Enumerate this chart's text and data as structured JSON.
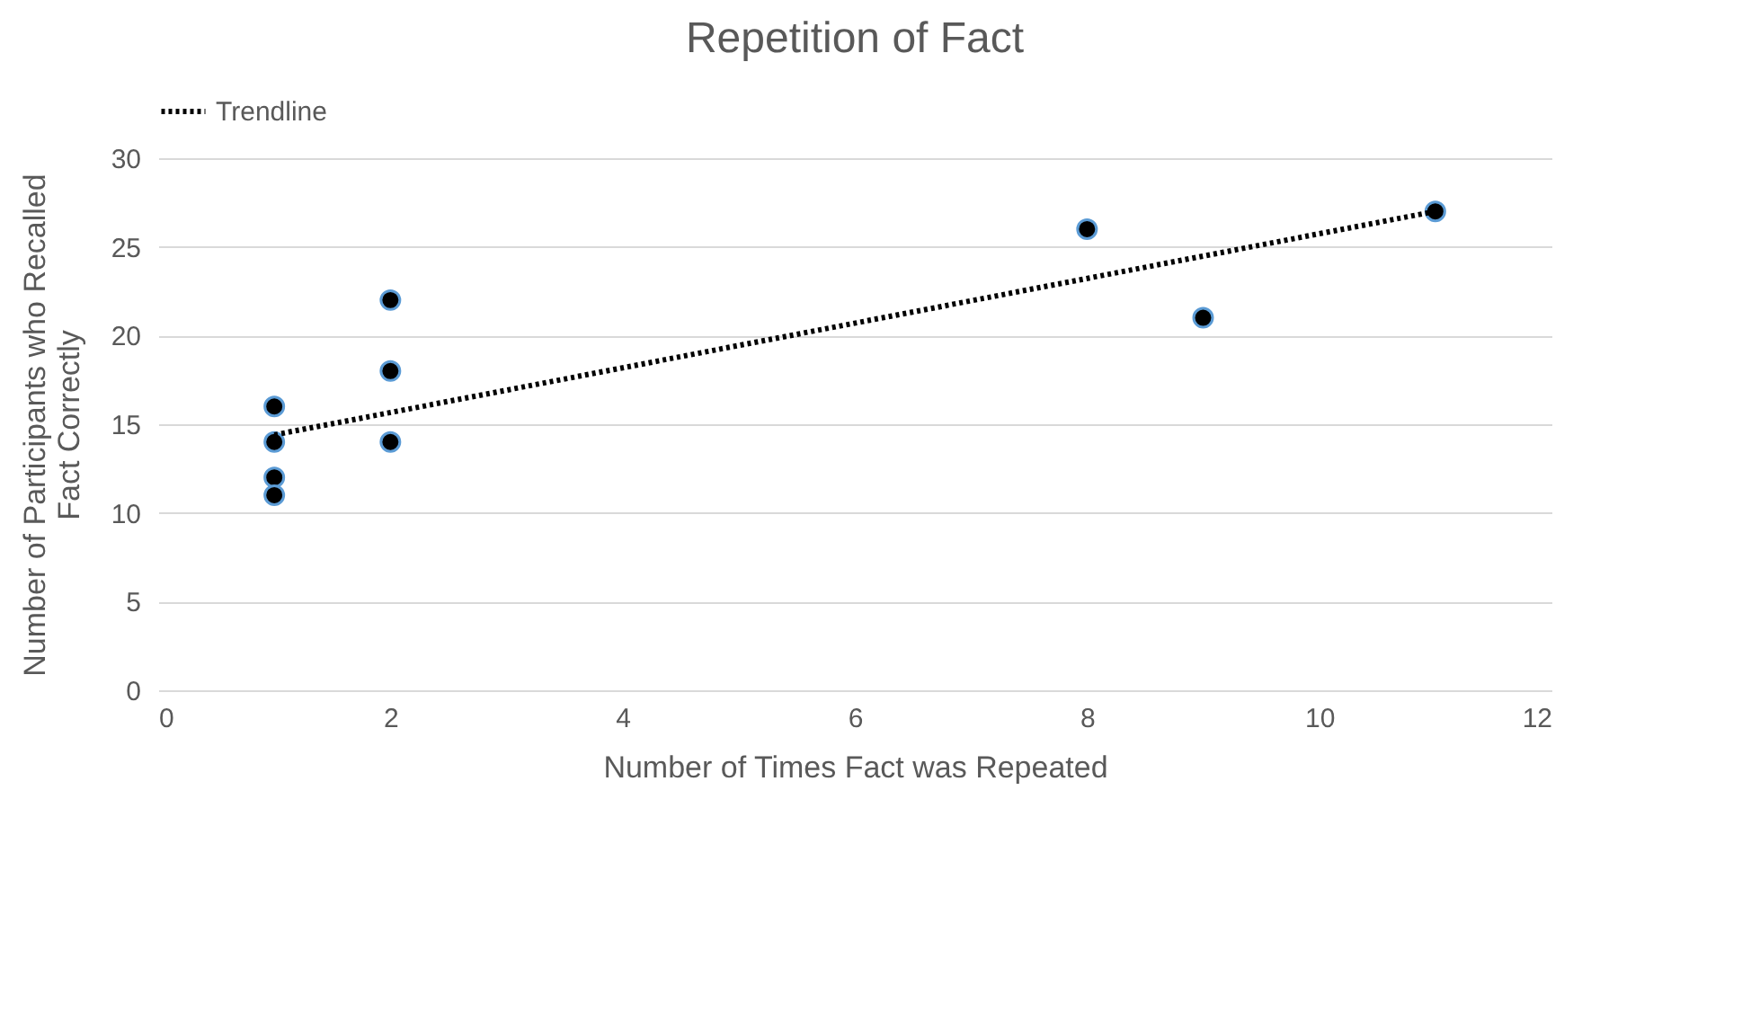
{
  "chart_data": {
    "type": "scatter",
    "title": "Repetition of Fact",
    "xlabel": "Number of Times Fact was Repeated",
    "ylabel": "Number of Participants who Recalled Fact Correctly",
    "x": [
      1,
      1,
      1,
      1,
      2,
      2,
      2,
      8,
      9,
      11
    ],
    "series": [
      {
        "color": "#000000",
        "values": [
          16,
          14,
          12,
          11,
          22,
          18,
          14,
          26,
          21,
          27
        ]
      },
      {
        "type": "line",
        "name": "Trendline",
        "color": "#000000",
        "line_style": "dotted",
        "marker": "none",
        "x": [
          1,
          11
        ],
        "values": [
          14.4,
          27
        ]
      }
    ],
    "marker": "circle",
    "xlim": [
      0,
      12
    ],
    "xticks": [
      0,
      2,
      4,
      6,
      8,
      10,
      12
    ],
    "ylim": [
      0,
      30
    ],
    "yticks": [
      0,
      5,
      10,
      15,
      20,
      25,
      30
    ],
    "grid": "y",
    "legend": "top"
  }
}
